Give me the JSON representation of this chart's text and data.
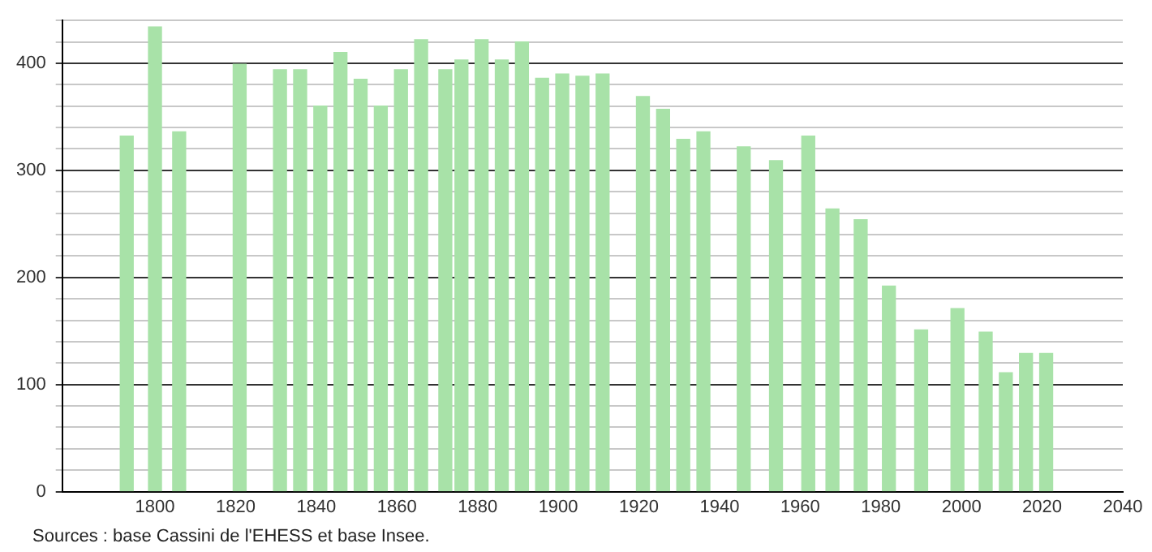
{
  "chart_data": {
    "type": "bar",
    "x": [
      1793,
      1800,
      1806,
      1821,
      1831,
      1836,
      1841,
      1846,
      1851,
      1856,
      1861,
      1866,
      1872,
      1876,
      1881,
      1886,
      1891,
      1896,
      1901,
      1906,
      1911,
      1921,
      1926,
      1931,
      1936,
      1946,
      1954,
      1962,
      1968,
      1975,
      1982,
      1990,
      1999,
      2006,
      2011,
      2016,
      2021
    ],
    "values": [
      332,
      434,
      336,
      399,
      394,
      394,
      360,
      410,
      385,
      360,
      394,
      422,
      394,
      403,
      422,
      403,
      420,
      386,
      390,
      388,
      390,
      369,
      357,
      329,
      336,
      322,
      309,
      332,
      264,
      254,
      192,
      151,
      171,
      149,
      111,
      129,
      129
    ],
    "color": "#a8e2a8",
    "xlim": [
      1777,
      2040
    ],
    "xticks": [
      1800,
      1820,
      1840,
      1860,
      1880,
      1900,
      1920,
      1940,
      1960,
      1980,
      2000,
      2020,
      2040
    ],
    "ylim": [
      0,
      440
    ],
    "yticks": [
      0,
      {
        "value": 20,
        "label": null
      },
      {
        "value": 40,
        "label": null
      },
      {
        "value": 60,
        "label": null
      },
      {
        "value": 80,
        "label": null
      },
      100,
      {
        "value": 120,
        "label": null
      },
      {
        "value": 140,
        "label": null
      },
      {
        "value": 160,
        "label": null
      },
      {
        "value": 180,
        "label": null
      },
      200,
      {
        "value": 220,
        "label": null
      },
      {
        "value": 240,
        "label": null
      },
      {
        "value": 260,
        "label": null
      },
      {
        "value": 280,
        "label": null
      },
      300,
      {
        "value": 320,
        "label": null
      },
      {
        "value": 340,
        "label": null
      },
      {
        "value": 360,
        "label": null
      },
      {
        "value": 380,
        "label": null
      },
      400,
      {
        "value": 420,
        "label": null
      },
      {
        "value": 440,
        "label": null
      }
    ],
    "grid": "y",
    "legend": false,
    "annotations": [
      "Sources : base Cassini de l'EHESS et base Insee."
    ]
  }
}
